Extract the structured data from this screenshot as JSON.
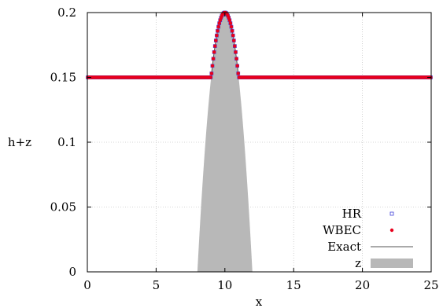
{
  "chart_data": {
    "type": "scatter",
    "title": "",
    "xlabel": "x",
    "ylabel": "h+z",
    "xlim": [
      0,
      25
    ],
    "ylim": [
      0,
      0.2
    ],
    "grid": true,
    "legend_position": "bottom-right",
    "x_ticks": [
      0,
      5,
      10,
      15,
      20,
      25
    ],
    "x_tick_labels": [
      "0",
      "5",
      "10",
      "15",
      "20",
      "25"
    ],
    "y_ticks": [
      0,
      0.05,
      0.1,
      0.15,
      0.2
    ],
    "y_tick_labels": [
      "0",
      "0.05",
      "0.1",
      "0.15",
      "0.2"
    ],
    "series": [
      {
        "name": "HR",
        "marker": "open-square",
        "color": "#3f3fd8",
        "description_values": "h+z = max(0.15, z)",
        "x_range": [
          0,
          25
        ],
        "n_points": 400
      },
      {
        "name": "WBEC",
        "marker": "filled-circle",
        "color": "#e8001c",
        "x_range": [
          0,
          25
        ],
        "n_points": 400
      },
      {
        "name": "Exact",
        "marker": "line",
        "color": "#555555",
        "x_range": [
          0,
          25
        ]
      },
      {
        "name": "z",
        "marker": "filled-area",
        "color": "#b8b8b8",
        "bump_center": 10,
        "bump_peak": 0.2,
        "bump_support": [
          8,
          12
        ]
      }
    ],
    "still_water_level": 0.15
  }
}
